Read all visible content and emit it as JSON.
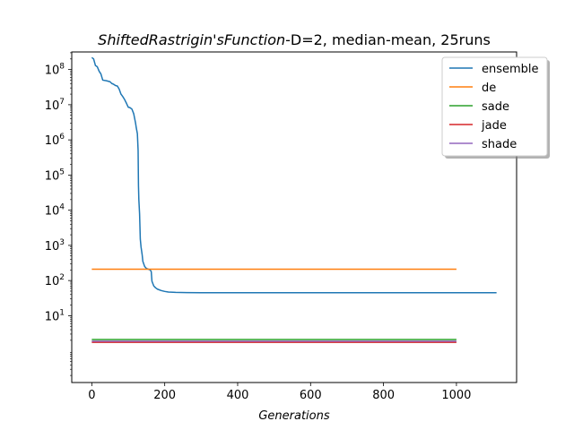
{
  "chart_data": {
    "type": "line",
    "title_italic": "ShiftedRastrigin'sFunction",
    "title_rest": "-D=2, median-mean, 25runs",
    "xlabel": "Generations",
    "ylabel": "",
    "xlim": [
      -55,
      1165
    ],
    "ylim_log10": [
      -0.9,
      8.5
    ],
    "y_scale": "log",
    "grid": false,
    "legend_position": "top-right",
    "x_ticks": [
      0,
      200,
      400,
      600,
      800,
      1000
    ],
    "y_ticks": [
      {
        "base": "10",
        "exp": "1",
        "log10": 1
      },
      {
        "base": "10",
        "exp": "2",
        "log10": 2
      },
      {
        "base": "10",
        "exp": "3",
        "log10": 3
      },
      {
        "base": "10",
        "exp": "4",
        "log10": 4
      },
      {
        "base": "10",
        "exp": "5",
        "log10": 5
      },
      {
        "base": "10",
        "exp": "6",
        "log10": 6
      },
      {
        "base": "10",
        "exp": "7",
        "log10": 7
      },
      {
        "base": "10",
        "exp": "8",
        "log10": 8
      }
    ],
    "series": [
      {
        "name": "ensemble",
        "color": "#1f77b4",
        "points": [
          [
            0,
            220000000
          ],
          [
            5,
            200000000
          ],
          [
            10,
            130000000
          ],
          [
            15,
            120000000
          ],
          [
            20,
            90000000
          ],
          [
            25,
            75000000
          ],
          [
            30,
            50000000
          ],
          [
            40,
            48000000
          ],
          [
            50,
            45000000
          ],
          [
            55,
            40000000
          ],
          [
            60,
            38000000
          ],
          [
            65,
            35000000
          ],
          [
            70,
            34000000
          ],
          [
            75,
            28000000
          ],
          [
            80,
            20000000
          ],
          [
            85,
            17000000
          ],
          [
            90,
            14000000
          ],
          [
            95,
            11000000
          ],
          [
            100,
            8500000
          ],
          [
            105,
            8200000
          ],
          [
            110,
            7500000
          ],
          [
            115,
            5500000
          ],
          [
            120,
            3000000
          ],
          [
            122,
            2200000
          ],
          [
            125,
            1500000
          ],
          [
            127,
            500000
          ],
          [
            128,
            50000
          ],
          [
            129,
            20000
          ],
          [
            131,
            8000
          ],
          [
            133,
            1500
          ],
          [
            135,
            900
          ],
          [
            138,
            550
          ],
          [
            140,
            350
          ],
          [
            145,
            250
          ],
          [
            150,
            220
          ],
          [
            155,
            210
          ],
          [
            160,
            200
          ],
          [
            163,
            180
          ],
          [
            165,
            95
          ],
          [
            170,
            70
          ],
          [
            175,
            62
          ],
          [
            180,
            57
          ],
          [
            190,
            52
          ],
          [
            200,
            49
          ],
          [
            210,
            47
          ],
          [
            230,
            46
          ],
          [
            260,
            45.5
          ],
          [
            300,
            45.2
          ],
          [
            400,
            45
          ],
          [
            600,
            45
          ],
          [
            800,
            45
          ],
          [
            1000,
            45
          ],
          [
            1110,
            45
          ]
        ]
      },
      {
        "name": "de",
        "color": "#ff7f0e",
        "points": [
          [
            0,
            210
          ],
          [
            1000,
            210
          ]
        ]
      },
      {
        "name": "sade",
        "color": "#2ca02c",
        "points": [
          [
            0,
            2.1
          ],
          [
            1000,
            2.1
          ]
        ]
      },
      {
        "name": "jade",
        "color": "#d62728",
        "points": [
          [
            0,
            1.75
          ],
          [
            1000,
            1.75
          ]
        ]
      },
      {
        "name": "shade",
        "color": "#9467bd",
        "points": [
          [
            0,
            1.88
          ],
          [
            1000,
            1.88
          ]
        ]
      }
    ]
  }
}
